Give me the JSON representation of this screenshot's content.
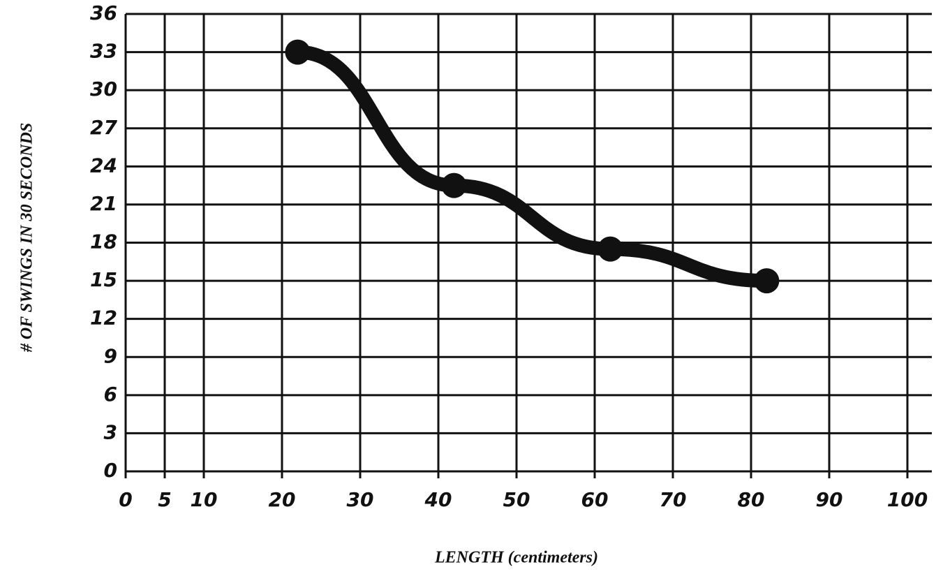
{
  "chart_data": {
    "type": "line",
    "x_label": "LENGTH (centimeters)",
    "y_label": "# OF SWINGS IN 30 SECONDS",
    "x": [
      22,
      42,
      62,
      82
    ],
    "series": [
      {
        "color": "#111111",
        "values": [
          33,
          22.5,
          17.5,
          15
        ]
      }
    ],
    "xlim": [
      0,
      100
    ],
    "xticks": [
      0,
      5,
      10,
      20,
      30,
      40,
      50,
      60,
      70,
      80,
      90,
      100
    ],
    "ylim": [
      0,
      36
    ],
    "yticks": [
      0,
      3,
      6,
      9,
      12,
      15,
      18,
      21,
      24,
      27,
      30,
      33,
      36
    ],
    "grid": true
  }
}
